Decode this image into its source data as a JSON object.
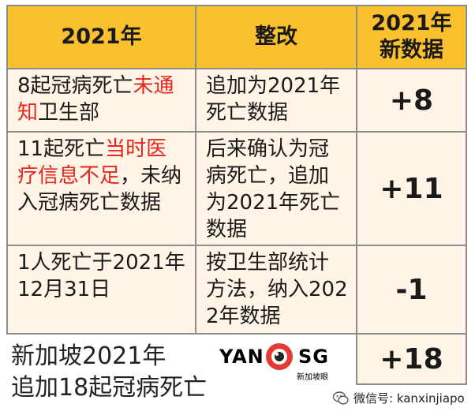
{
  "header": {
    "year_col": "2021年",
    "change_col": "整改",
    "new_data_col_line1": "2021年",
    "new_data_col_line2": "新数据"
  },
  "rows": [
    {
      "desc_plain_before": "8起冠病死亡",
      "desc_red": "未通知",
      "desc_plain_after": "卫生部",
      "change": "追加为2021年死亡数据",
      "value": "+8"
    },
    {
      "desc_plain_before": "11起死亡",
      "desc_red": "当时医疗信息不足",
      "desc_plain_after": "，未纳入冠病死亡数据",
      "change": "后来确认为冠病死亡，追加为2021年死亡数据",
      "value": "+11"
    },
    {
      "desc_plain_before": "1人死亡于2021年12月31日",
      "desc_red": "",
      "desc_plain_after": "",
      "change": "按卫生部统计方法，纳入2022年数据",
      "value": "-1"
    }
  ],
  "summary": {
    "line1": "新加坡2021年",
    "line2": "追加18起冠病死亡",
    "total": "+18"
  },
  "logo": {
    "left_text": "YAN",
    "right_text": "SG",
    "sub_text": "新加坡眼"
  },
  "watermark": {
    "text": "微信号: kanxinjiapo",
    "icon": "wechat-icon"
  },
  "colors": {
    "header_bg": "#fbc02d",
    "body_bg": "#fff4e6",
    "border": "#8c8c8c",
    "highlight_red": "#e8261c"
  }
}
